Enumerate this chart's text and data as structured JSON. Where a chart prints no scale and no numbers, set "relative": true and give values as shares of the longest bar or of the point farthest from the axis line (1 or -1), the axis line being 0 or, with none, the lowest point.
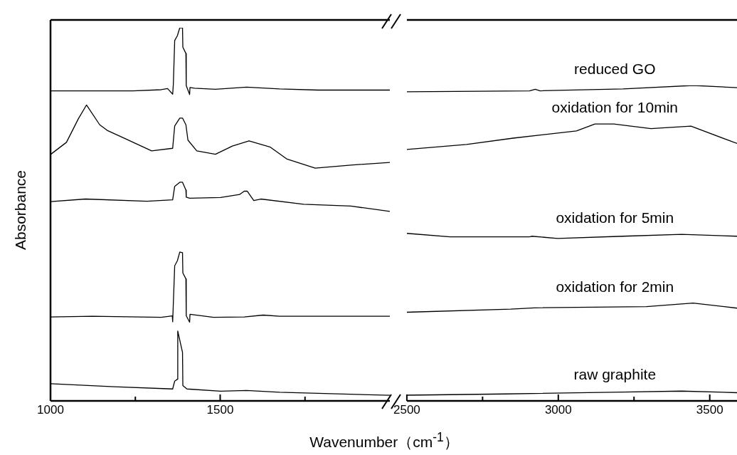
{
  "chart_data": [
    {
      "type": "line",
      "relative": true,
      "ylabel": "Absorbance",
      "xlabel": "Wavenumber（cm$^{-1}$）",
      "xlim": [
        1000,
        2000
      ],
      "xticks": [
        1000,
        {
          "value": 1250,
          "label": null
        },
        1500,
        {
          "value": 1750,
          "label": null
        }
      ],
      "legend": false,
      "marker": "none",
      "line_style": "solid",
      "series": [
        {
          "color": "#000000",
          "x": [
            1001,
            1243,
            1326,
            1345,
            1360,
            1362,
            1366,
            1374,
            1381,
            1389,
            1390,
            1399,
            1400,
            1410,
            1411,
            1424,
            1486,
            1578,
            1675,
            1788,
            2000
          ],
          "values": [
            0.831,
            0.831,
            0.834,
            0.837,
            0.822,
            0.849,
            0.966,
            0.979,
            1.0,
            1.0,
            0.948,
            0.931,
            0.845,
            0.821,
            0.84,
            0.838,
            0.835,
            0.841,
            0.836,
            0.833,
            0.833
          ]
        },
        {
          "color": "#000000",
          "x": [
            1001,
            1047,
            1082,
            1106,
            1145,
            1167,
            1222,
            1298,
            1360,
            1366,
            1381,
            1389,
            1399,
            1405,
            1431,
            1486,
            1536,
            1585,
            1648,
            1697,
            1780,
            1885,
            2000
          ],
          "values": [
            0.661,
            0.693,
            0.756,
            0.793,
            0.74,
            0.725,
            0.702,
            0.67,
            0.677,
            0.737,
            0.758,
            0.758,
            0.74,
            0.699,
            0.67,
            0.661,
            0.683,
            0.697,
            0.68,
            0.648,
            0.624,
            0.632,
            0.639
          ]
        },
        {
          "color": "#000000",
          "x": [
            1001,
            1103,
            1284,
            1360,
            1366,
            1381,
            1389,
            1399,
            1400,
            1410,
            1501,
            1557,
            1571,
            1580,
            1592,
            1599,
            1620,
            1746,
            1885,
            2000
          ],
          "values": [
            0.534,
            0.541,
            0.535,
            0.539,
            0.575,
            0.586,
            0.586,
            0.565,
            0.546,
            0.543,
            0.545,
            0.553,
            0.562,
            0.562,
            0.546,
            0.537,
            0.541,
            0.527,
            0.522,
            0.508
          ]
        },
        {
          "color": "#000000",
          "x": [
            1001,
            1124,
            1326,
            1359,
            1360,
            1366,
            1374,
            1381,
            1389,
            1390,
            1399,
            1400,
            1410,
            1411,
            1480,
            1571,
            1627,
            1675,
            2000
          ],
          "values": [
            0.225,
            0.227,
            0.224,
            0.228,
            0.212,
            0.362,
            0.376,
            0.399,
            0.397,
            0.343,
            0.327,
            0.228,
            0.211,
            0.232,
            0.224,
            0.225,
            0.23,
            0.227,
            0.227
          ]
        },
        {
          "color": "#000000",
          "x": [
            1001,
            1187,
            1360,
            1366,
            1374,
            1375,
            1389,
            1390,
            1402,
            1501,
            1578,
            1675,
            2000
          ],
          "values": [
            0.046,
            0.038,
            0.032,
            0.053,
            0.058,
            0.187,
            0.13,
            0.041,
            0.032,
            0.026,
            0.028,
            0.023,
            0.015
          ]
        }
      ]
    },
    {
      "type": "line",
      "relative": true,
      "xlim": [
        2500,
        3590
      ],
      "xticks": [
        2500,
        {
          "value": 2750,
          "label": null
        },
        3000,
        {
          "value": 3250,
          "label": null
        },
        3500
      ],
      "legend": false,
      "marker": "none",
      "line_style": "solid",
      "series": [
        {
          "name": "reduced GO",
          "color": "#000000",
          "x": [
            2500,
            2905,
            2924,
            2940,
            3214,
            3445,
            3590
          ],
          "values": [
            0.98,
            0.983,
            0.988,
            0.983,
            0.989,
            1.0,
            0.993
          ]
        },
        {
          "name": "oxidation for 10min",
          "color": "#000000",
          "x": [
            2500,
            2697,
            2851,
            3060,
            3121,
            3183,
            3306,
            3438,
            3590
          ],
          "values": [
            0.797,
            0.813,
            0.833,
            0.856,
            0.878,
            0.878,
            0.863,
            0.871,
            0.816
          ]
        },
        {
          "name": "oxidation for 5min",
          "color": "#000000",
          "x": [
            2500,
            2643,
            2905,
            2912,
            2998,
            3214,
            3407,
            3590
          ],
          "values": [
            0.531,
            0.52,
            0.52,
            0.522,
            0.515,
            0.522,
            0.528,
            0.522
          ]
        },
        {
          "name": "oxidation for 2min",
          "color": "#000000",
          "x": [
            2500,
            2843,
            2921,
            3291,
            3445,
            3590
          ],
          "values": [
            0.281,
            0.291,
            0.295,
            0.299,
            0.31,
            0.294
          ]
        },
        {
          "name": "raw graphite",
          "color": "#000000",
          "x": [
            2500,
            2828,
            3214,
            3407,
            3590
          ],
          "values": [
            0.018,
            0.022,
            0.028,
            0.031,
            0.026
          ]
        }
      ]
    }
  ]
}
